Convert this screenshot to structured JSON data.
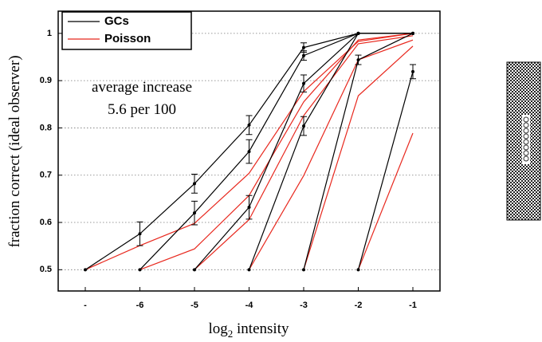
{
  "chart_data": {
    "type": "line",
    "categories": [
      "-",
      "-6",
      "-5",
      "-4",
      "-3",
      "-2",
      "-1"
    ],
    "x_label": [
      "log",
      "2",
      " intensity"
    ],
    "y_label": "fraction correct (ideal observer)",
    "annotation": [
      "average increase",
      "5.6 per 100"
    ],
    "ylim": [
      0.455,
      1.047
    ],
    "yticks": [
      0.5,
      0.6,
      0.7,
      0.8,
      0.9,
      1
    ],
    "grid": true,
    "legend": "top-left",
    "series": [
      {
        "name": "GCs",
        "color": "#000000",
        "lines": [
          {
            "values": [
              0.5,
              0.576,
              0.682,
              0.806,
              0.97,
              1,
              1
            ],
            "errors": [
              null,
              0.025,
              0.02,
              0.02,
              0.01,
              null,
              null
            ]
          },
          {
            "values": [
              null,
              0.5,
              0.62,
              0.75,
              0.953,
              1,
              1
            ],
            "errors": [
              null,
              null,
              0.025,
              0.025,
              0.01,
              null,
              null
            ]
          },
          {
            "values": [
              null,
              null,
              0.5,
              0.632,
              0.894,
              1,
              1
            ],
            "errors": [
              null,
              null,
              null,
              0.025,
              0.018,
              null,
              null
            ]
          },
          {
            "values": [
              null,
              null,
              null,
              0.5,
              0.804,
              1,
              1
            ],
            "errors": [
              null,
              null,
              null,
              null,
              0.02,
              null,
              null
            ]
          },
          {
            "values": [
              null,
              null,
              null,
              null,
              0.5,
              0.944,
              1
            ],
            "errors": [
              null,
              null,
              null,
              null,
              null,
              0.01,
              null
            ]
          },
          {
            "values": [
              null,
              null,
              null,
              null,
              null,
              0.5,
              0.919
            ],
            "errors": [
              null,
              null,
              null,
              null,
              null,
              null,
              0.015
            ]
          }
        ]
      },
      {
        "name": "Poisson",
        "color": "#e8281e",
        "lines": [
          {
            "values": [
              0.5,
              0.551,
              0.598,
              0.704,
              0.877,
              0.983,
              1
            ]
          },
          {
            "values": [
              null,
              0.5,
              0.544,
              0.657,
              0.855,
              0.986,
              1
            ]
          },
          {
            "values": [
              null,
              null,
              0.5,
              0.606,
              0.826,
              0.978,
              0.995
            ]
          },
          {
            "values": [
              null,
              null,
              null,
              0.5,
              0.699,
              0.944,
              0.986
            ]
          },
          {
            "values": [
              null,
              null,
              null,
              null,
              0.5,
              0.868,
              0.973
            ]
          },
          {
            "values": [
              null,
              null,
              null,
              null,
              null,
              0.5,
              0.789
            ]
          }
        ]
      }
    ]
  }
}
